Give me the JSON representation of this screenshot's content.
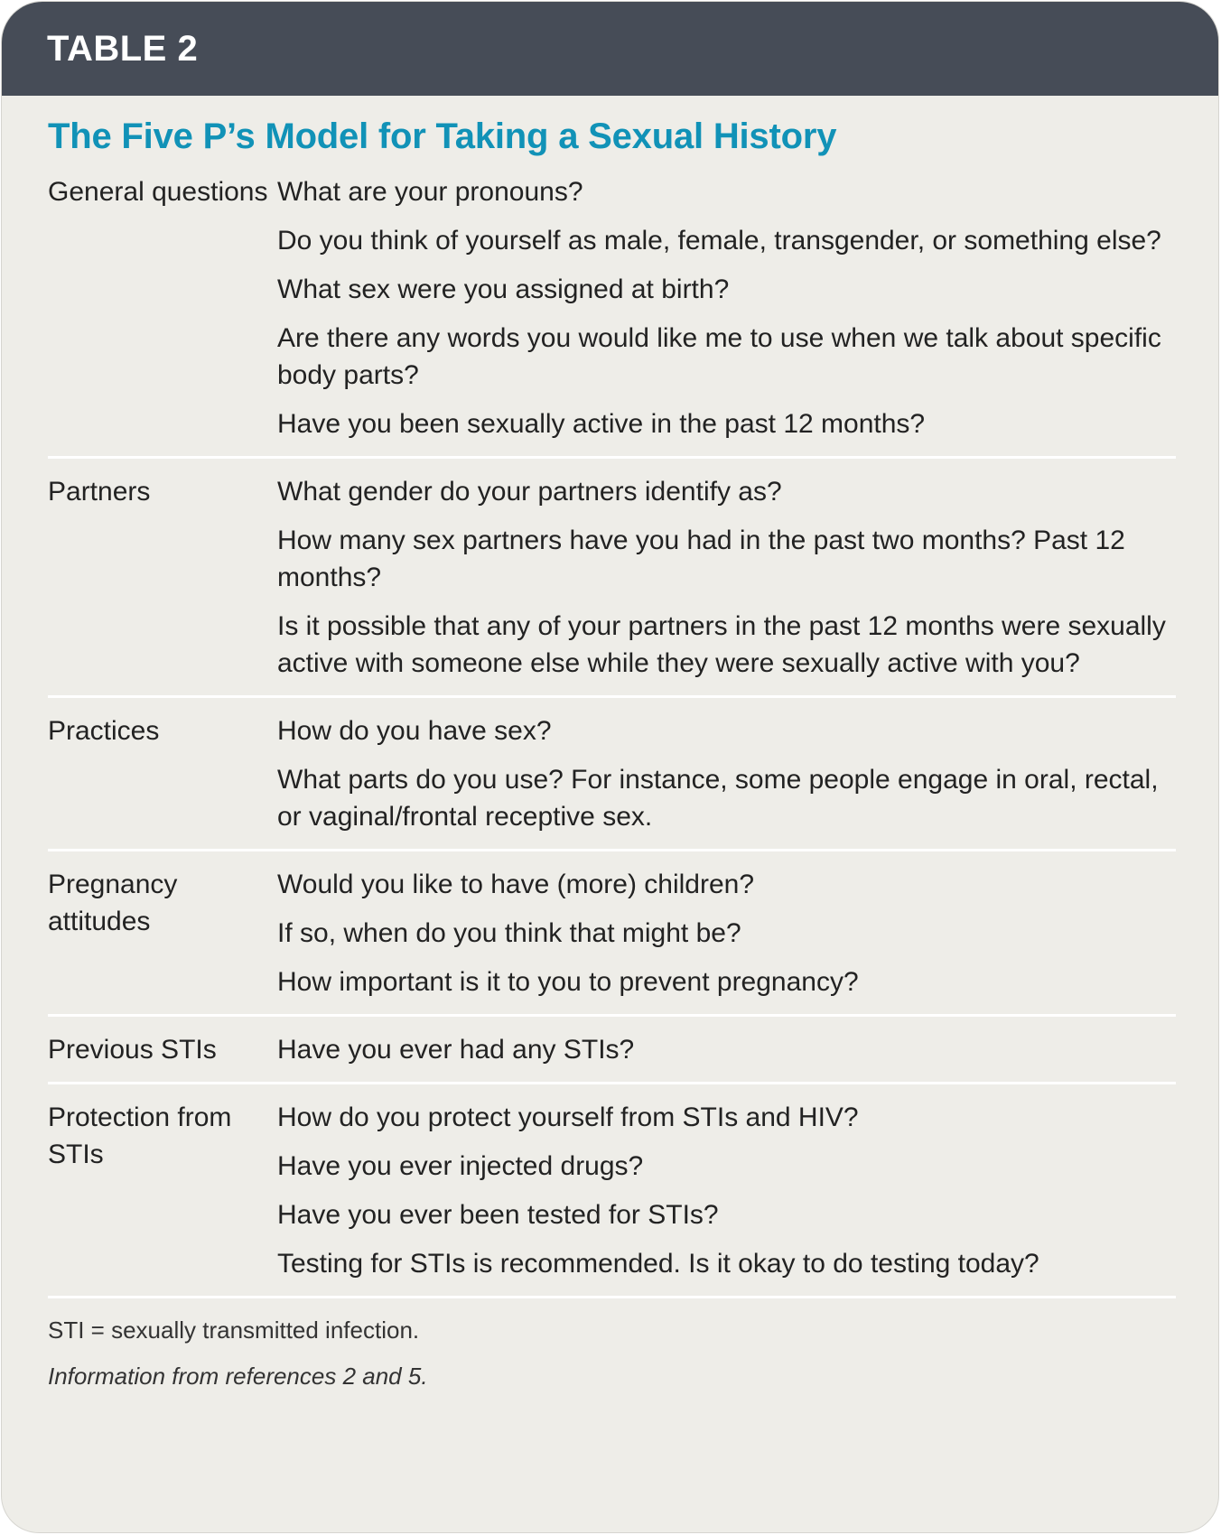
{
  "header": {
    "label": "TABLE 2"
  },
  "title": "The Five P’s Model for Taking a Sexual History",
  "colors": {
    "header_bg": "#464c57",
    "title": "#1192b7",
    "card_bg": "#eeede8"
  },
  "rows": [
    {
      "category": "General questions",
      "items": [
        "What are your pronouns?",
        "Do you think of yourself as male, female, transgender, or something else?",
        "What sex were you assigned at birth?",
        "Are there any words you would like me to use when we talk about specific body parts?",
        "Have you been sexually active in the past 12 months?"
      ]
    },
    {
      "category": "Partners",
      "items": [
        "What gender do your partners identify as?",
        "How many sex partners have you had in the past two months? Past 12 months?",
        "Is it possible that any of your partners in the past 12 months were sexually active with someone else while they were sexually active with you?"
      ]
    },
    {
      "category": "Practices",
      "items": [
        "How do you have sex?",
        "What parts do you use? For instance, some people engage in oral, rectal, or vaginal/frontal receptive sex."
      ]
    },
    {
      "category": "Pregnancy attitudes",
      "items": [
        "Would you like to have (more) children?",
        "If so, when do you think that might be?",
        "How important is it to you to prevent pregnancy?"
      ]
    },
    {
      "category": "Previous STIs",
      "items": [
        "Have you ever had any STIs?"
      ]
    },
    {
      "category": "Protection from STIs",
      "items": [
        "How do you protect yourself from STIs and HIV?",
        "Have you ever injected drugs?",
        "Have you ever been tested for STIs?",
        "Testing for STIs is recommended. Is it okay to do testing today?"
      ]
    }
  ],
  "footnotes": {
    "abbreviation": "STI = sexually transmitted infection.",
    "source": "Information from references 2 and 5."
  }
}
